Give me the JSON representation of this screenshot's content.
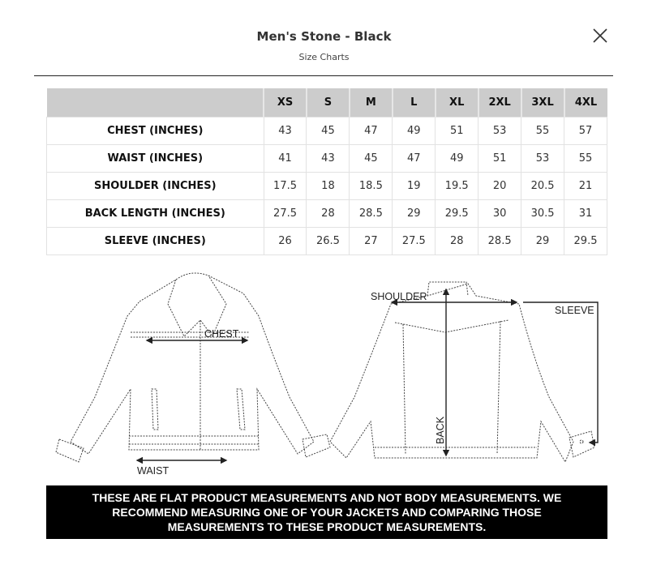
{
  "header": {
    "title": "Men's Stone - Black",
    "subtitle": "Size Charts",
    "close_icon": "close-x-icon"
  },
  "table": {
    "columns": [
      "",
      "XS",
      "S",
      "M",
      "L",
      "XL",
      "2XL",
      "3XL",
      "4XL"
    ],
    "rows": [
      {
        "label": "CHEST (INCHES)",
        "values": [
          "43",
          "45",
          "47",
          "49",
          "51",
          "53",
          "55",
          "57"
        ]
      },
      {
        "label": "WAIST (INCHES)",
        "values": [
          "41",
          "43",
          "45",
          "47",
          "49",
          "51",
          "53",
          "55"
        ]
      },
      {
        "label": "SHOULDER (INCHES)",
        "values": [
          "17.5",
          "18",
          "18.5",
          "19",
          "19.5",
          "20",
          "20.5",
          "21"
        ]
      },
      {
        "label": "BACK LENGTH (INCHES)",
        "values": [
          "27.5",
          "28",
          "28.5",
          "29",
          "29.5",
          "30",
          "30.5",
          "31"
        ]
      },
      {
        "label": "SLEEVE (INCHES)",
        "values": [
          "26",
          "26.5",
          "27",
          "27.5",
          "28",
          "28.5",
          "29",
          "29.5"
        ]
      }
    ]
  },
  "diagram": {
    "chest": "CHEST",
    "waist": "WAIST",
    "shoulder": "SHOULDER",
    "sleeve": "SLEEVE",
    "back": "BACK"
  },
  "notice": "THESE ARE FLAT PRODUCT MEASUREMENTS AND NOT BODY MEASUREMENTS. WE RECOMMEND MEASURING ONE OF YOUR JACKETS AND COMPARING THOSE MEASUREMENTS TO THESE PRODUCT MEASUREMENTS."
}
